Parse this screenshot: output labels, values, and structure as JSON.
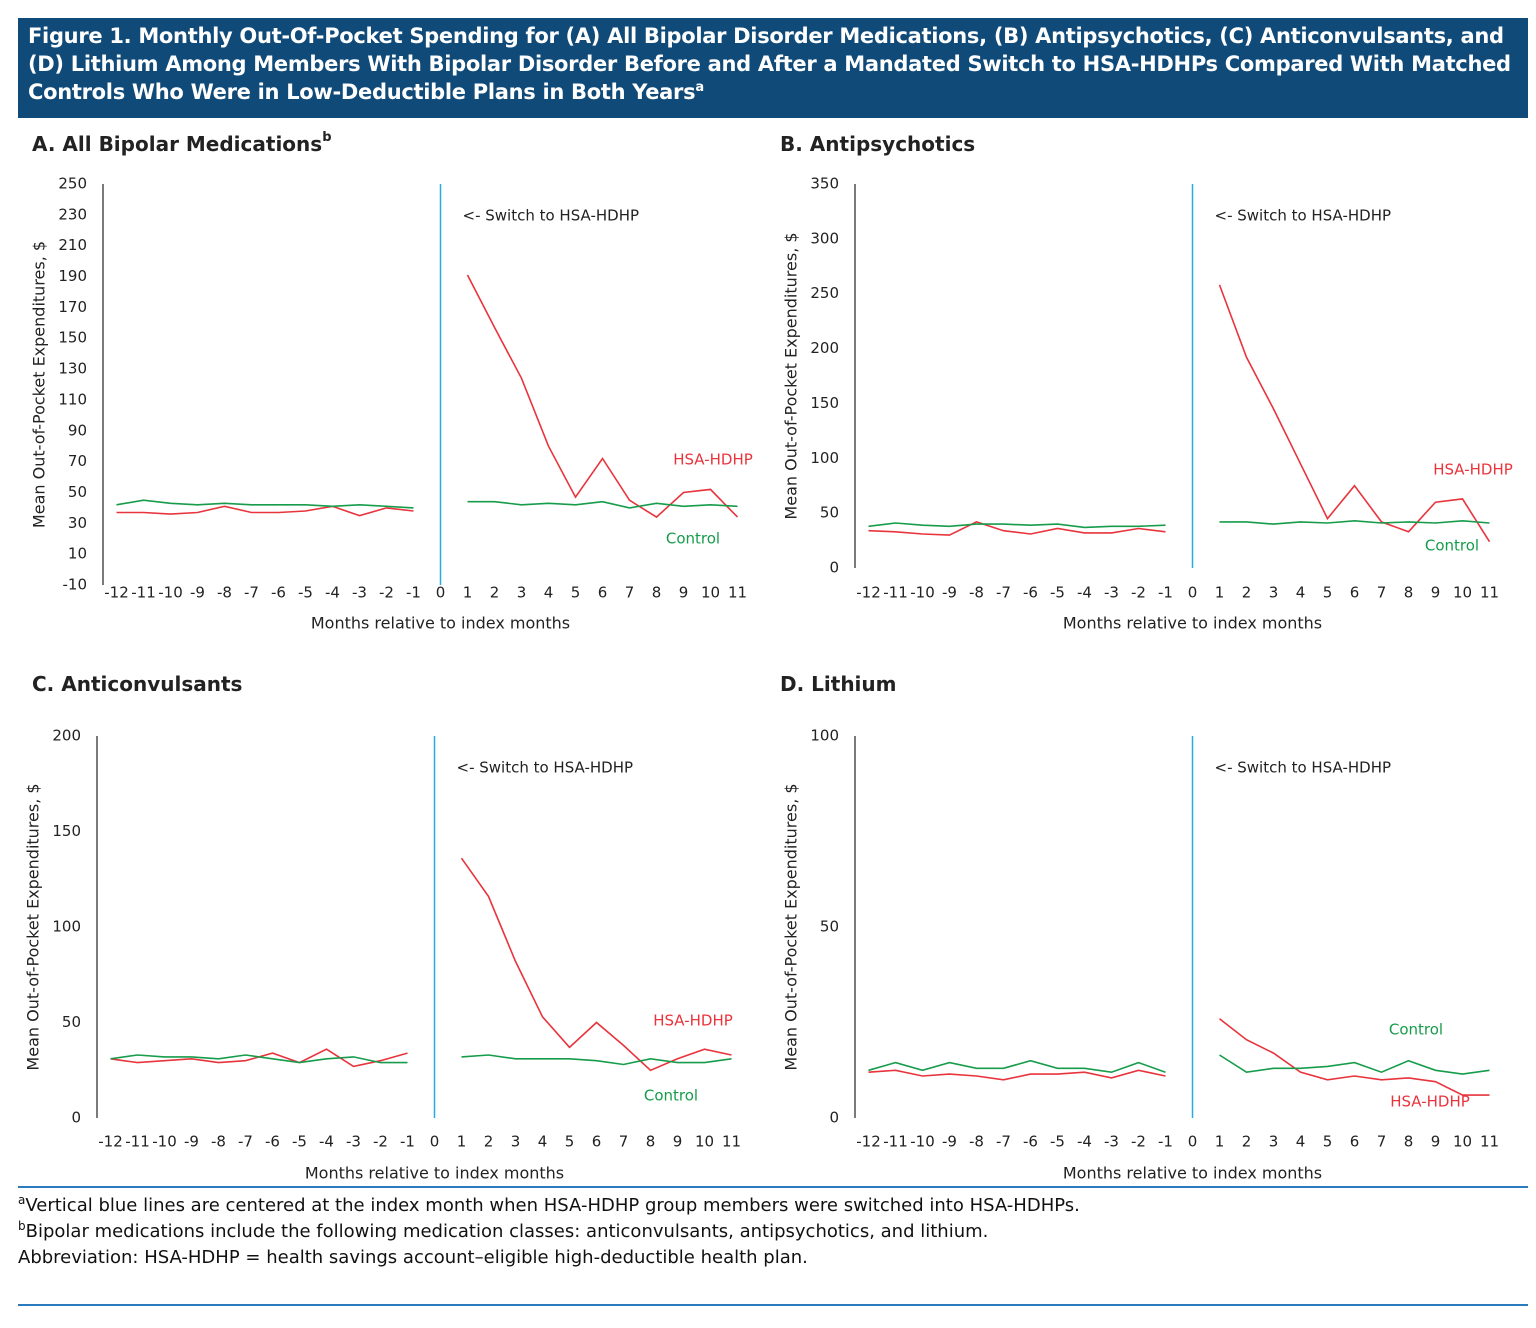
{
  "header": {
    "title": "Figure 1. Monthly Out-Of-Pocket Spending for (A) All Bipolar Disorder Medications, (B) Antipsychotics, (C) Anticonvulsants, and (D) Lithium Among Members With Bipolar Disorder Before and After a Mandated Switch to HSA-HDHPs Compared With Matched Controls Who Were in Low-Deductible Plans in Both Years",
    "title_note": "a"
  },
  "chart_data": [
    {
      "type": "line",
      "title": "A. All Bipolar Medications",
      "title_note": "b",
      "x_label": "Months relative to index months",
      "y_label": "Mean Out-of-Pocket Expenditures, $",
      "annotation": "<- Switch to HSA-HDHP",
      "vline": 0,
      "vline_color": "#29a9e0",
      "x": [
        -12,
        -11,
        -10,
        -9,
        -8,
        -7,
        -6,
        -5,
        -4,
        -3,
        -2,
        -1,
        0,
        1,
        2,
        3,
        4,
        5,
        6,
        7,
        8,
        9,
        10,
        11
      ],
      "xlim": [
        -12.5,
        11.5
      ],
      "xticks": [
        -12,
        -11,
        -10,
        -9,
        -8,
        -7,
        -6,
        -5,
        -4,
        -3,
        -2,
        -1,
        0,
        1,
        2,
        3,
        4,
        5,
        6,
        7,
        8,
        9,
        10,
        11
      ],
      "ylim": [
        -10,
        250
      ],
      "yticks": [
        -10,
        10,
        30,
        50,
        70,
        90,
        110,
        130,
        150,
        170,
        190,
        210,
        230,
        250
      ],
      "series": [
        {
          "name": "HSA-HDHP",
          "color": "#e8343c",
          "values": [
            37,
            37,
            36,
            37,
            41,
            37,
            37,
            38,
            41,
            35,
            40,
            38,
            null,
            191,
            157,
            124,
            80,
            47,
            72,
            45,
            34,
            50,
            52,
            34
          ]
        },
        {
          "name": "Control",
          "color": "#179c4b",
          "values": [
            42,
            45,
            43,
            42,
            43,
            42,
            42,
            42,
            41,
            42,
            41,
            40,
            null,
            44,
            44,
            42,
            43,
            42,
            44,
            40,
            43,
            41,
            42,
            41
          ]
        }
      ]
    },
    {
      "type": "line",
      "title": "B. Antipsychotics",
      "x_label": "Months relative to index months",
      "y_label": "Mean Out-of-Pocket Expenditures, $",
      "annotation": "<- Switch to HSA-HDHP",
      "vline": 0,
      "vline_color": "#29a9e0",
      "x": [
        -12,
        -11,
        -10,
        -9,
        -8,
        -7,
        -6,
        -5,
        -4,
        -3,
        -2,
        -1,
        0,
        1,
        2,
        3,
        4,
        5,
        6,
        7,
        8,
        9,
        10,
        11
      ],
      "xlim": [
        -12.5,
        11.5
      ],
      "xticks": [
        -12,
        -11,
        -10,
        -9,
        -8,
        -7,
        -6,
        -5,
        -4,
        -3,
        -2,
        -1,
        0,
        1,
        2,
        3,
        4,
        5,
        6,
        7,
        8,
        9,
        10,
        11
      ],
      "ylim": [
        0,
        350
      ],
      "yticks": [
        0,
        50,
        100,
        150,
        200,
        250,
        300,
        350
      ],
      "series": [
        {
          "name": "HSA-HDHP",
          "color": "#e8343c",
          "values": [
            34,
            33,
            31,
            30,
            42,
            34,
            31,
            36,
            32,
            32,
            36,
            33,
            null,
            258,
            192,
            145,
            95,
            45,
            75,
            42,
            33,
            60,
            63,
            24
          ]
        },
        {
          "name": "Control",
          "color": "#179c4b",
          "values": [
            38,
            41,
            39,
            38,
            40,
            40,
            39,
            40,
            37,
            38,
            38,
            39,
            null,
            42,
            42,
            40,
            42,
            41,
            43,
            41,
            42,
            41,
            43,
            41
          ]
        }
      ]
    },
    {
      "type": "line",
      "title": "C. Anticonvulsants",
      "x_label": "Months relative to index months",
      "y_label": "Mean Out-of-Pocket Expenditures, $",
      "annotation": "<- Switch to HSA-HDHP",
      "vline": 0,
      "vline_color": "#29a9e0",
      "x": [
        -12,
        -11,
        -10,
        -9,
        -8,
        -7,
        -6,
        -5,
        -4,
        -3,
        -2,
        -1,
        0,
        1,
        2,
        3,
        4,
        5,
        6,
        7,
        8,
        9,
        10,
        11
      ],
      "xlim": [
        -12.5,
        11.5
      ],
      "xticks": [
        -12,
        -11,
        -10,
        -9,
        -8,
        -7,
        -6,
        -5,
        -4,
        -3,
        -2,
        -1,
        0,
        1,
        2,
        3,
        4,
        5,
        6,
        7,
        8,
        9,
        10,
        11
      ],
      "ylim": [
        0,
        200
      ],
      "yticks": [
        0,
        50,
        100,
        150,
        200
      ],
      "series": [
        {
          "name": "HSA-HDHP",
          "color": "#e8343c",
          "values": [
            31,
            29,
            30,
            31,
            29,
            30,
            34,
            29,
            36,
            27,
            30,
            34,
            null,
            136,
            116,
            82,
            53,
            37,
            50,
            38,
            25,
            31,
            36,
            33
          ]
        },
        {
          "name": "Control",
          "color": "#179c4b",
          "values": [
            31,
            33,
            32,
            32,
            31,
            33,
            31,
            29,
            31,
            32,
            29,
            29,
            null,
            32,
            33,
            31,
            31,
            31,
            30,
            28,
            31,
            29,
            29,
            31
          ]
        }
      ]
    },
    {
      "type": "line",
      "title": "D. Lithium",
      "x_label": "Months relative to index months",
      "y_label": "Mean Out-of-Pocket Expenditures, $",
      "annotation": "<- Switch to HSA-HDHP",
      "vline": 0,
      "vline_color": "#29a9e0",
      "x": [
        -12,
        -11,
        -10,
        -9,
        -8,
        -7,
        -6,
        -5,
        -4,
        -3,
        -2,
        -1,
        0,
        1,
        2,
        3,
        4,
        5,
        6,
        7,
        8,
        9,
        10,
        11
      ],
      "xlim": [
        -12.5,
        11.5
      ],
      "xticks": [
        -12,
        -11,
        -10,
        -9,
        -8,
        -7,
        -6,
        -5,
        -4,
        -3,
        -2,
        -1,
        0,
        1,
        2,
        3,
        4,
        5,
        6,
        7,
        8,
        9,
        10,
        11
      ],
      "ylim": [
        0,
        100
      ],
      "yticks": [
        0,
        50,
        100
      ],
      "series": [
        {
          "name": "HSA-HDHP",
          "color": "#e8343c",
          "values": [
            12,
            12.5,
            11,
            11.5,
            11,
            10,
            11.5,
            11.5,
            12,
            10.5,
            12.5,
            11,
            null,
            26,
            20.5,
            17,
            12,
            10,
            11,
            10,
            10.5,
            9.5,
            6,
            6
          ]
        },
        {
          "name": "Control",
          "color": "#179c4b",
          "values": [
            12.5,
            14.5,
            12.5,
            14.5,
            13,
            13,
            15,
            13,
            13,
            12,
            14.5,
            12,
            null,
            16.5,
            12,
            13,
            13,
            13.5,
            14.5,
            12,
            15,
            12.5,
            11.5,
            12.5
          ]
        }
      ]
    }
  ],
  "footnotes": [
    {
      "mark": "a",
      "text": "Vertical blue lines are centered at the index month when HSA-HDHP group members were switched into HSA-HDHPs."
    },
    {
      "mark": "b",
      "text": "Bipolar medications include the following medication classes: anticonvulsants, antipsychotics, and lithium."
    },
    {
      "text": "Abbreviation: HSA-HDHP = health savings account–eligible high-deductible health plan."
    }
  ]
}
